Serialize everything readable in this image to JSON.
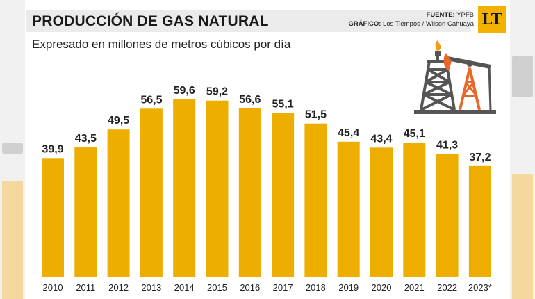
{
  "header": {
    "title": "PRODUCCIÓN DE GAS NATURAL",
    "subtitle": "Expresado en millones de metros cúbicos por día",
    "fuente_label": "FUENTE:",
    "fuente_value": "YPFB",
    "grafico_label": "GRÁFICO:",
    "grafico_value": "Los Tiempos / Wilson Cahuaya",
    "logo_text": "LT"
  },
  "colors": {
    "bar": "#eeae00",
    "title_bg": "#ebebeb",
    "logo_bg": "#f3b200"
  },
  "chart_data": {
    "type": "bar",
    "title": "PRODUCCIÓN DE GAS NATURAL",
    "subtitle": "Expresado en millones de metros cúbicos por día",
    "xlabel": "",
    "ylabel": "",
    "categories": [
      "2010",
      "2011",
      "2012",
      "2013",
      "2014",
      "2015",
      "2016",
      "2017",
      "2018",
      "2019",
      "2020",
      "2021",
      "2022",
      "2023*"
    ],
    "values": [
      39.9,
      43.5,
      49.5,
      56.5,
      59.6,
      59.2,
      56.6,
      55.1,
      51.5,
      45.4,
      43.4,
      45.1,
      41.3,
      37.2
    ],
    "value_labels": [
      "39,9",
      "43,5",
      "49,5",
      "56,5",
      "59,6",
      "59,2",
      "56,6",
      "55,1",
      "51,5",
      "45,4",
      "43,4",
      "45,1",
      "41,3",
      "37,2"
    ],
    "ylim": [
      0,
      59.6
    ],
    "grid": false,
    "legend": "none"
  }
}
